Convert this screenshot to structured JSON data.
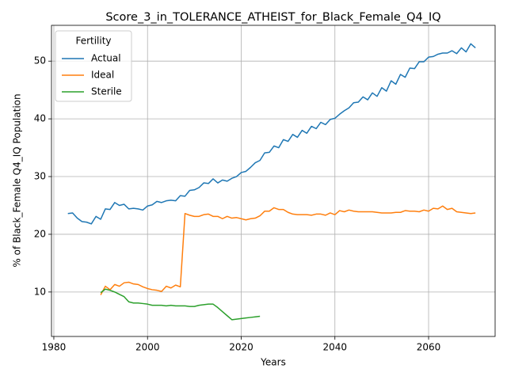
{
  "chart_data": {
    "type": "line",
    "title": "Score_3_in_TOLERANCE_ATHEIST_for_Black_Female_Q4_IQ",
    "xlabel": "Years",
    "ylabel": "% of Black_Female Q4_IQ Population",
    "legend_title": "Fertility",
    "legend": "upper left",
    "grid": true,
    "xlim": [
      1979.5,
      2074.2
    ],
    "ylim": [
      2.3,
      56.2
    ],
    "xticks": [
      1980,
      2000,
      2020,
      2040,
      2060
    ],
    "yticks": [
      10,
      20,
      30,
      40,
      50
    ],
    "x": [
      1983,
      1984,
      1985,
      1986,
      1987,
      1988,
      1989,
      1990,
      1991,
      1992,
      1993,
      1994,
      1995,
      1996,
      1997,
      1998,
      1999,
      2000,
      2001,
      2002,
      2003,
      2004,
      2005,
      2006,
      2007,
      2008,
      2009,
      2010,
      2011,
      2012,
      2013,
      2014,
      2015,
      2016,
      2017,
      2018,
      2019,
      2020,
      2021,
      2022,
      2023,
      2024,
      2025,
      2026,
      2027,
      2028,
      2029,
      2030,
      2031,
      2032,
      2033,
      2034,
      2035,
      2036,
      2037,
      2038,
      2039,
      2040,
      2041,
      2042,
      2043,
      2044,
      2045,
      2046,
      2047,
      2048,
      2049,
      2050,
      2051,
      2052,
      2053,
      2054,
      2055,
      2056,
      2057,
      2058,
      2059,
      2060,
      2061,
      2062,
      2063,
      2064,
      2065,
      2066,
      2067,
      2068,
      2069,
      2070
    ],
    "series": [
      {
        "name": "Actual",
        "color": "#1f77b4",
        "values": [
          23.6,
          23.7,
          22.8,
          22.2,
          22.1,
          21.8,
          23.1,
          22.6,
          24.4,
          24.3,
          25.5,
          25.0,
          25.2,
          24.4,
          24.5,
          24.4,
          24.2,
          24.9,
          25.1,
          25.7,
          25.5,
          25.8,
          25.9,
          25.8,
          26.7,
          26.6,
          27.6,
          27.7,
          28.1,
          28.9,
          28.8,
          29.6,
          28.9,
          29.4,
          29.2,
          29.7,
          30.0,
          30.7,
          30.9,
          31.6,
          32.4,
          32.8,
          34.1,
          34.2,
          35.3,
          35.0,
          36.4,
          36.1,
          37.3,
          36.8,
          38.0,
          37.5,
          38.7,
          38.3,
          39.4,
          39.0,
          39.9,
          40.1,
          40.8,
          41.4,
          41.9,
          42.8,
          42.9,
          43.8,
          43.3,
          44.5,
          43.9,
          45.4,
          44.8,
          46.6,
          46.0,
          47.7,
          47.2,
          48.8,
          48.7,
          49.9,
          49.9,
          50.7,
          50.8,
          51.2,
          51.4,
          51.4,
          51.8,
          51.3,
          52.3,
          51.6,
          53.0,
          52.3
        ]
      },
      {
        "name": "Ideal",
        "color": "#ff7f0e",
        "values": [
          null,
          null,
          null,
          null,
          null,
          null,
          null,
          9.5,
          11.0,
          10.4,
          11.3,
          11.0,
          11.6,
          11.7,
          11.4,
          11.3,
          10.9,
          10.6,
          10.4,
          10.3,
          10.1,
          11.0,
          10.7,
          11.2,
          10.9,
          23.6,
          23.3,
          23.1,
          23.1,
          23.4,
          23.5,
          23.1,
          23.1,
          22.7,
          23.1,
          22.8,
          22.9,
          22.7,
          22.5,
          22.7,
          22.8,
          23.2,
          24.0,
          24.0,
          24.6,
          24.3,
          24.3,
          23.8,
          23.5,
          23.4,
          23.4,
          23.4,
          23.3,
          23.5,
          23.5,
          23.3,
          23.7,
          23.4,
          24.1,
          23.9,
          24.2,
          24.0,
          23.9,
          23.9,
          23.9,
          23.9,
          23.8,
          23.7,
          23.7,
          23.7,
          23.8,
          23.8,
          24.1,
          24.0,
          24.0,
          23.9,
          24.2,
          24.0,
          24.5,
          24.4,
          24.9,
          24.3,
          24.5,
          23.9,
          23.8,
          23.7,
          23.6,
          23.7
        ]
      },
      {
        "name": "Sterile",
        "color": "#2ca02c",
        "values": [
          null,
          null,
          null,
          null,
          null,
          null,
          null,
          9.9,
          10.5,
          10.3,
          10.0,
          9.6,
          9.2,
          8.3,
          8.1,
          8.1,
          8.0,
          7.9,
          7.7,
          7.7,
          7.7,
          7.6,
          7.7,
          7.6,
          7.6,
          7.6,
          7.5,
          7.5,
          7.7,
          7.8,
          7.9,
          7.9,
          7.3,
          6.6,
          5.9,
          5.2,
          5.3,
          5.4,
          5.5,
          5.6,
          5.7,
          5.8,
          null,
          null,
          null,
          null,
          null,
          null,
          null,
          null,
          null,
          null,
          null,
          null,
          null,
          null,
          null,
          null,
          null,
          null,
          null,
          null,
          null,
          null,
          null,
          null,
          null,
          null,
          null,
          null,
          null,
          null,
          null,
          null,
          null,
          null,
          null,
          null,
          null,
          null,
          null,
          null,
          null,
          null,
          null,
          null,
          null,
          null
        ]
      }
    ]
  }
}
